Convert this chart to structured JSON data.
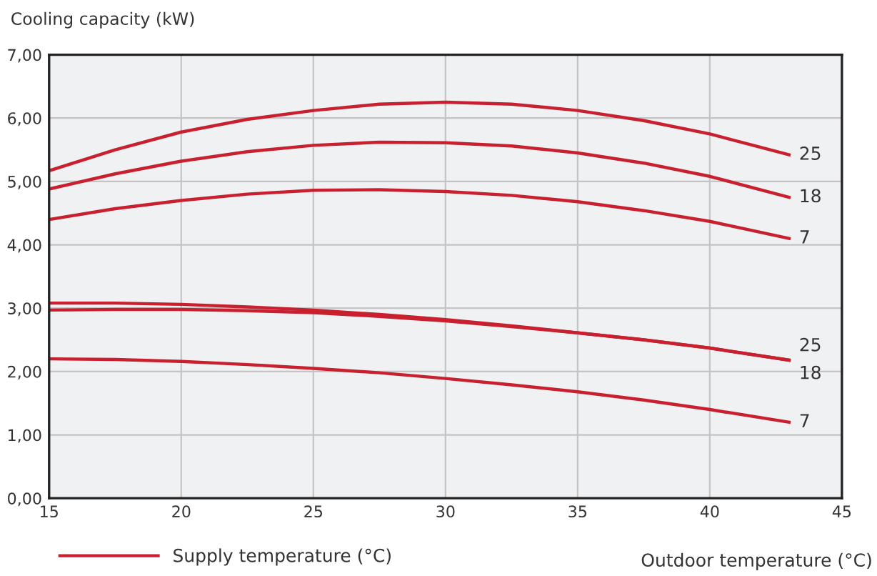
{
  "chart_data": {
    "type": "line",
    "ylabel": "Cooling capacity (kW)",
    "xlabel": "Outdoor temperature (°C)",
    "legend_title": "Supply temperature (°C)",
    "x": [
      15,
      17.5,
      20,
      22.5,
      25,
      27.5,
      30,
      32.5,
      35,
      37.5,
      40,
      43
    ],
    "series": [
      {
        "name": "25",
        "color": "#c8202e",
        "values": [
          5.17,
          5.5,
          5.78,
          5.98,
          6.12,
          6.22,
          6.25,
          6.22,
          6.12,
          5.96,
          5.75,
          5.42
        ]
      },
      {
        "name": "18",
        "color": "#c8202e",
        "values": [
          4.88,
          5.12,
          5.32,
          5.47,
          5.57,
          5.62,
          5.61,
          5.56,
          5.45,
          5.29,
          5.08,
          4.75
        ]
      },
      {
        "name": "7",
        "color": "#c8202e",
        "values": [
          4.4,
          4.57,
          4.7,
          4.8,
          4.86,
          4.87,
          4.84,
          4.78,
          4.68,
          4.54,
          4.37,
          4.1
        ]
      },
      {
        "name": "25",
        "color": "#c8202e",
        "values": [
          3.08,
          3.08,
          3.06,
          3.02,
          2.97,
          2.9,
          2.82,
          2.72,
          2.61,
          2.5,
          2.37,
          2.18
        ]
      },
      {
        "name": "18",
        "color": "#c8202e",
        "values": [
          2.97,
          2.98,
          2.98,
          2.96,
          2.93,
          2.87,
          2.8,
          2.71,
          2.61,
          2.5,
          2.37,
          2.18
        ]
      },
      {
        "name": "7",
        "color": "#c8202e",
        "values": [
          2.2,
          2.19,
          2.16,
          2.11,
          2.05,
          1.98,
          1.89,
          1.79,
          1.68,
          1.55,
          1.4,
          1.2
        ]
      }
    ],
    "xlim": [
      15,
      45
    ],
    "xticks": [
      15,
      20,
      25,
      30,
      35,
      40,
      45
    ],
    "ylim": [
      0,
      7
    ],
    "yticks": [
      {
        "value": 0,
        "label": "0,00"
      },
      {
        "value": 1,
        "label": "1,00"
      },
      {
        "value": 2,
        "label": "2,00"
      },
      {
        "value": 3,
        "label": "3,00"
      },
      {
        "value": 4,
        "label": "4,00"
      },
      {
        "value": 5,
        "label": "5,00"
      },
      {
        "value": 6,
        "label": "6,00"
      },
      {
        "value": 7,
        "label": "7,00"
      }
    ],
    "grid": true,
    "marker": "none",
    "line_style": "solid"
  }
}
